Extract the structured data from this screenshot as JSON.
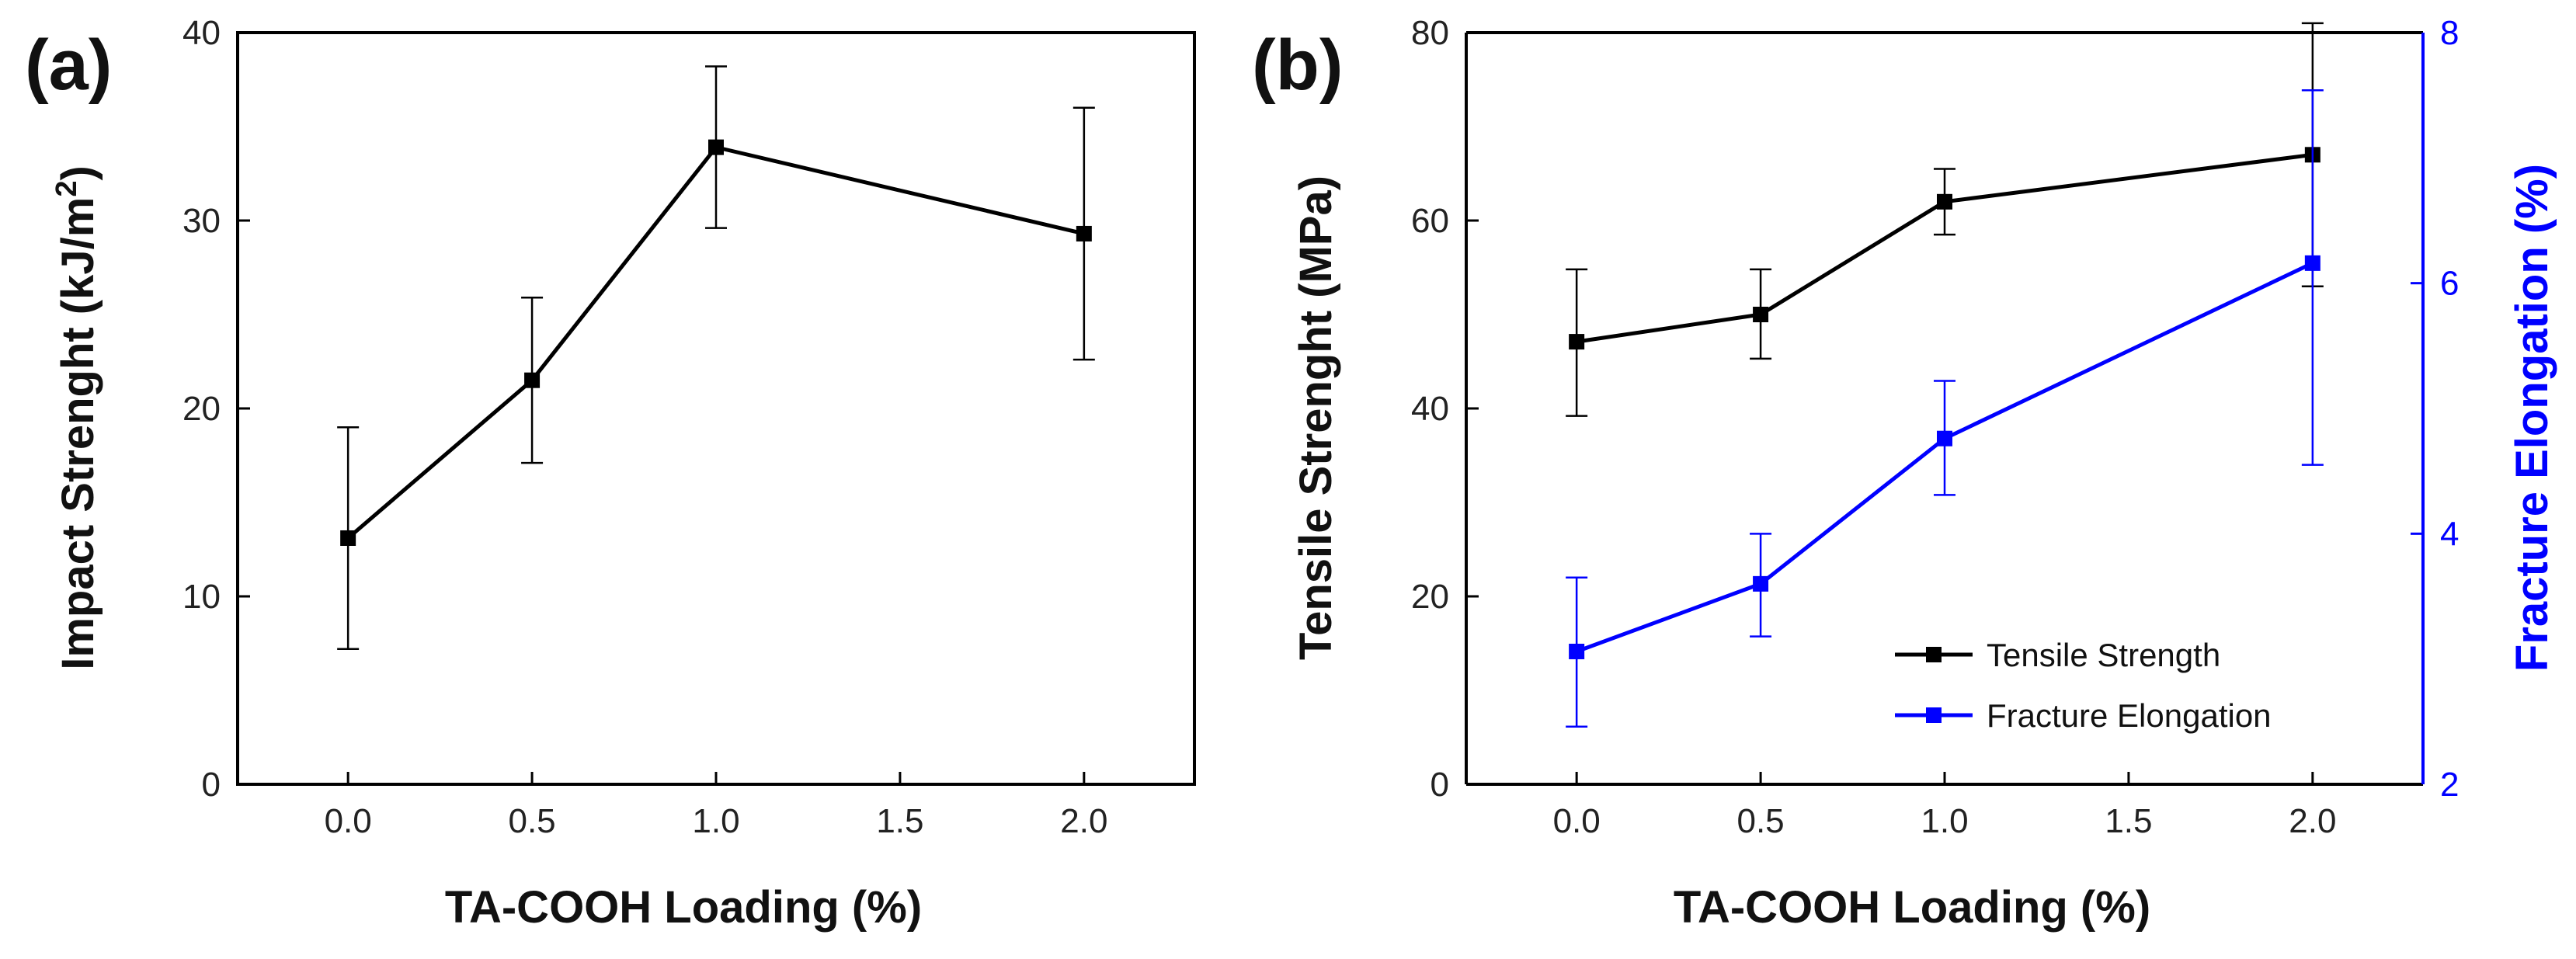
{
  "chart_data": [
    {
      "panel": "(a)",
      "type": "line",
      "xlabel": "TA-COOH Loading (%)",
      "ylabel": "Impact Strenght (kJ/m",
      "ylabel_sup": "2",
      "ylabel_close": ")",
      "xlim": [
        -0.3,
        2.3
      ],
      "ylim": [
        0,
        40
      ],
      "xticks": [
        "0.0",
        "0.5",
        "1.0",
        "1.5",
        "2.0"
      ],
      "yticks": [
        "0",
        "10",
        "20",
        "30",
        "40"
      ],
      "series": [
        {
          "name": "Impact Strength",
          "color": "#000000",
          "x": [
            0.0,
            0.5,
            1.0,
            2.0
          ],
          "y": [
            13.1,
            21.5,
            33.9,
            29.3
          ],
          "err_low": [
            7.2,
            17.1,
            29.6,
            22.6
          ],
          "err_high": [
            19.0,
            25.9,
            38.2,
            36.0
          ]
        }
      ]
    },
    {
      "panel": "(b)",
      "type": "line",
      "xlabel": "TA-COOH Loading (%)",
      "ylabel": "Tensile Strenght (MPa)",
      "ylabel_right": "Fracture Elongation (%)",
      "xlim": [
        -0.3,
        2.3
      ],
      "ylim": [
        0,
        80
      ],
      "ylim_right": [
        2,
        8
      ],
      "xticks": [
        "0.0",
        "0.5",
        "1.0",
        "1.5",
        "2.0"
      ],
      "yticks": [
        "0",
        "20",
        "40",
        "60",
        "80"
      ],
      "yticks_right": [
        "2",
        "4",
        "6",
        "8"
      ],
      "legend_position": "bottom-right",
      "series": [
        {
          "name": "Tensile  Strength",
          "axis": "left",
          "color": "#000000",
          "x": [
            0.0,
            0.5,
            1.0,
            2.0
          ],
          "y": [
            47.1,
            50.0,
            62.0,
            67.0
          ],
          "err_low": [
            39.2,
            45.3,
            58.5,
            53.0
          ],
          "err_high": [
            54.8,
            54.8,
            65.5,
            81.0
          ]
        },
        {
          "name": "Fracture Elongation",
          "axis": "right",
          "color": "#0000FF",
          "x": [
            0.0,
            0.5,
            1.0,
            2.0
          ],
          "y": [
            3.06,
            3.6,
            4.76,
            6.16
          ],
          "err_low": [
            2.46,
            3.18,
            4.31,
            4.55
          ],
          "err_high": [
            3.65,
            4.0,
            5.22,
            7.54
          ]
        }
      ]
    }
  ]
}
